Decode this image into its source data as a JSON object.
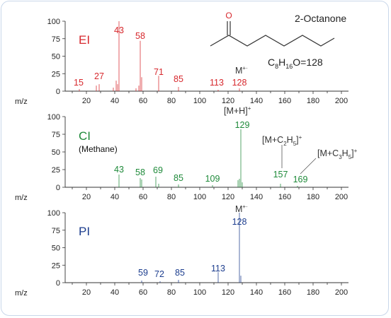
{
  "axis": {
    "x_label": "m/z",
    "x_ticks": [
      20,
      40,
      60,
      80,
      100,
      120,
      140,
      160,
      180,
      200
    ],
    "y_ticks": [
      0,
      25,
      50,
      75,
      100
    ]
  },
  "compound": {
    "name": "2-Octanone",
    "formula_main": "C",
    "formula_parts": [
      {
        "text": "C",
        "sub": "8"
      },
      {
        "text": "H",
        "sub": "16"
      },
      {
        "text": "O=128",
        "sub": ""
      }
    ],
    "oxygen_label": "O"
  },
  "chart_data": [
    {
      "type": "bar",
      "title": "EI",
      "color": "#d7282d",
      "xlim": [
        5,
        205
      ],
      "ylim": [
        0,
        100
      ],
      "xlabel": "m/z",
      "peaks": [
        {
          "x": 15,
          "y": 3
        },
        {
          "x": 27,
          "y": 8
        },
        {
          "x": 29,
          "y": 10
        },
        {
          "x": 39,
          "y": 5
        },
        {
          "x": 41,
          "y": 15
        },
        {
          "x": 42,
          "y": 10
        },
        {
          "x": 43,
          "y": 100
        },
        {
          "x": 55,
          "y": 4
        },
        {
          "x": 57,
          "y": 8
        },
        {
          "x": 58,
          "y": 72
        },
        {
          "x": 59,
          "y": 20
        },
        {
          "x": 71,
          "y": 22
        },
        {
          "x": 85,
          "y": 6
        },
        {
          "x": 113,
          "y": 2
        },
        {
          "x": 128,
          "y": 4
        }
      ],
      "labels": [
        {
          "x": 15,
          "text": "15"
        },
        {
          "x": 27,
          "text": "27"
        },
        {
          "x": 43,
          "text": "43"
        },
        {
          "x": 58,
          "text": "58"
        },
        {
          "x": 71,
          "text": "71"
        },
        {
          "x": 85,
          "text": "85"
        },
        {
          "x": 113,
          "text": "113"
        },
        {
          "x": 128,
          "text": "128"
        }
      ],
      "ion_note": "M+·"
    },
    {
      "type": "bar",
      "title": "CI",
      "subtitle": "(Methane)",
      "color": "#1f8a3a",
      "xlim": [
        5,
        205
      ],
      "ylim": [
        0,
        100
      ],
      "xlabel": "m/z",
      "peaks": [
        {
          "x": 43,
          "y": 18
        },
        {
          "x": 58,
          "y": 13
        },
        {
          "x": 59,
          "y": 11
        },
        {
          "x": 69,
          "y": 15
        },
        {
          "x": 71,
          "y": 5
        },
        {
          "x": 85,
          "y": 4
        },
        {
          "x": 109,
          "y": 3
        },
        {
          "x": 127,
          "y": 10
        },
        {
          "x": 128,
          "y": 12
        },
        {
          "x": 129,
          "y": 82
        },
        {
          "x": 130,
          "y": 7
        },
        {
          "x": 157,
          "y": 5
        },
        {
          "x": 169,
          "y": 2
        }
      ],
      "labels": [
        {
          "x": 43,
          "text": "43"
        },
        {
          "x": 58,
          "text": "58"
        },
        {
          "x": 69,
          "text": "69"
        },
        {
          "x": 85,
          "text": "85"
        },
        {
          "x": 109,
          "text": "109"
        },
        {
          "x": 129,
          "text": "129"
        },
        {
          "x": 157,
          "text": "157"
        },
        {
          "x": 169,
          "text": "169"
        }
      ],
      "annotations": {
        "mh": "[M+H]+",
        "mc2h5": "[M+C2H5]+",
        "mc3h5": "[M+C3H5]+"
      }
    },
    {
      "type": "bar",
      "title": "PI",
      "color": "#1c3d8e",
      "xlim": [
        5,
        205
      ],
      "ylim": [
        0,
        100
      ],
      "xlabel": "m/z",
      "peaks": [
        {
          "x": 59,
          "y": 3
        },
        {
          "x": 72,
          "y": 2
        },
        {
          "x": 85,
          "y": 4
        },
        {
          "x": 113,
          "y": 15
        },
        {
          "x": 128,
          "y": 100
        },
        {
          "x": 129,
          "y": 10
        }
      ],
      "labels": [
        {
          "x": 59,
          "text": "59"
        },
        {
          "x": 72,
          "text": "72"
        },
        {
          "x": 85,
          "text": "85"
        },
        {
          "x": 113,
          "text": "113"
        },
        {
          "x": 128,
          "text": "128"
        }
      ],
      "ion_note": "M+·"
    }
  ]
}
